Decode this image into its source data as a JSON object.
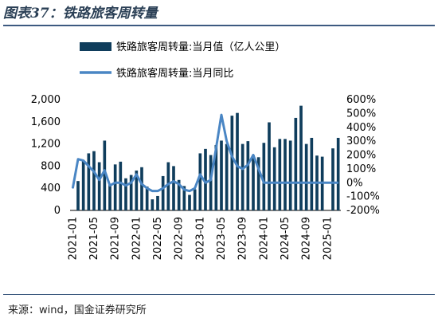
{
  "header": {
    "title": "图表37：铁路旅客周转量"
  },
  "footer": {
    "source": "来源：wind，国金证券研究所"
  },
  "colors": {
    "bars": "#0f3d5c",
    "line": "#4a86c4"
  },
  "chart_data": {
    "type": "bar",
    "x": [
      "2021-01",
      "2021-02",
      "2021-03",
      "2021-04",
      "2021-05",
      "2021-06",
      "2021-07",
      "2021-08",
      "2021-09",
      "2021-10",
      "2021-11",
      "2021-12",
      "2022-01",
      "2022-02",
      "2022-03",
      "2022-04",
      "2022-05",
      "2022-06",
      "2022-07",
      "2022-08",
      "2022-09",
      "2022-10",
      "2022-11",
      "2022-12",
      "2023-01",
      "2023-02",
      "2023-03",
      "2023-04",
      "2023-05",
      "2023-06",
      "2023-07",
      "2023-08",
      "2023-09",
      "2023-10",
      "2023-11",
      "2023-12",
      "2024-01",
      "2024-02",
      "2024-03",
      "2024-04",
      "2024-05",
      "2024-06",
      "2024-07",
      "2024-08",
      "2024-09",
      "2024-10",
      "2024-11",
      "2024-12",
      "2025-01",
      "2025-02",
      "2025-03"
    ],
    "x_tick_labels": [
      "2021-01",
      "2021-05",
      "2021-09",
      "2022-01",
      "2022-05",
      "2022-09",
      "2023-01",
      "2023-05",
      "2023-09",
      "2024-01",
      "2024-05",
      "2024-09",
      "2025-01"
    ],
    "series": [
      {
        "name": "铁路旅客周转量:当月值（亿人公里）",
        "type": "bar",
        "axis": "left",
        "values": [
          null,
          530,
          900,
          1030,
          1070,
          870,
          1260,
          460,
          830,
          880,
          580,
          640,
          720,
          780,
          430,
          200,
          260,
          620,
          870,
          800,
          550,
          440,
          280,
          380,
          1030,
          1110,
          1000,
          1180,
          1260,
          1200,
          1710,
          1760,
          1200,
          1250,
          1000,
          960,
          1220,
          1590,
          1140,
          1290,
          1290,
          1260,
          1670,
          1890,
          1200,
          1310,
          990,
          970,
          null,
          1120,
          1310
        ]
      },
      {
        "name": "铁路旅客周转量:当月同比",
        "type": "line",
        "axis": "right",
        "values": [
          -40,
          170,
          160,
          120,
          80,
          20,
          90,
          -20,
          0,
          0,
          -20,
          0,
          60,
          -10,
          -40,
          -60,
          -60,
          -40,
          -10,
          10,
          -10,
          -50,
          -60,
          -40,
          60,
          0,
          20,
          250,
          490,
          300,
          190,
          120,
          100,
          130,
          200,
          100,
          0,
          0,
          0,
          0,
          0,
          0,
          0,
          0,
          0,
          0,
          0,
          0,
          0,
          0,
          0
        ]
      }
    ],
    "left_axis": {
      "ylim": [
        0,
        2000
      ],
      "ticks": [
        "0",
        "400",
        "800",
        "1,200",
        "1,600",
        "2,000"
      ]
    },
    "right_axis": {
      "ylim": [
        -200,
        600
      ],
      "ticks": [
        "-200%",
        "-100%",
        "0%",
        "100%",
        "200%",
        "300%",
        "400%",
        "500%",
        "600%"
      ]
    },
    "legend": {
      "position": "top-left"
    }
  }
}
